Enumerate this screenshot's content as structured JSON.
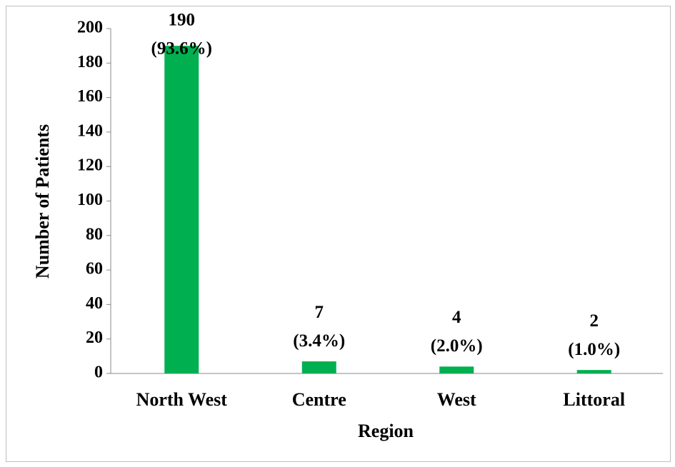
{
  "chart_data": {
    "type": "bar",
    "x_label": "Region",
    "y_label": "Number of Patients",
    "categories": [
      "North West",
      "Centre",
      "West",
      "Littoral"
    ],
    "values": [
      190,
      7,
      4,
      2
    ],
    "share_labels": [
      "(93.6%)",
      "(3.4%)",
      "(2.0%)",
      "(1.0%)"
    ],
    "color": "#00b050",
    "ylim": [
      0,
      200
    ],
    "yticks": [
      0,
      20,
      40,
      60,
      80,
      100,
      120,
      140,
      160,
      180,
      200
    ],
    "grid": false
  }
}
